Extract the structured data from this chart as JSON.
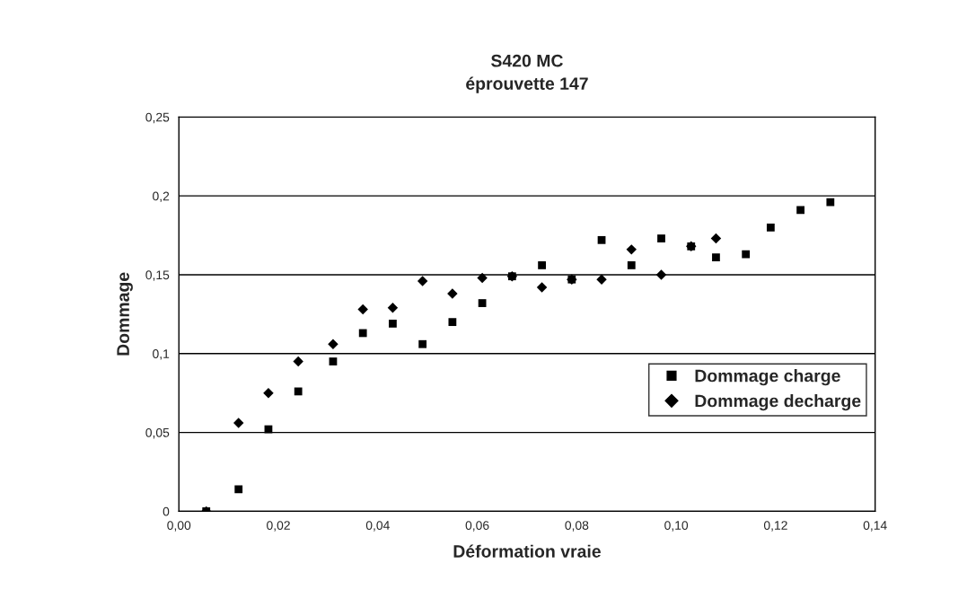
{
  "chart_data": {
    "type": "scatter",
    "title": "S420 MC\néprouvette 147",
    "xlabel": "Déformation vraie",
    "ylabel": "Dommage",
    "series": [
      {
        "name": "Dommage charge",
        "color": "#000000",
        "marker": "square",
        "x": [
          0.0055,
          0.012,
          0.018,
          0.024,
          0.031,
          0.037,
          0.043,
          0.049,
          0.055,
          0.061,
          0.067,
          0.073,
          0.079,
          0.085,
          0.091,
          0.097,
          0.103,
          0.108,
          0.114,
          0.119,
          0.125,
          0.131
        ],
        "values": [
          0,
          0.014,
          0.052,
          0.076,
          0.095,
          0.113,
          0.119,
          0.106,
          0.12,
          0.132,
          0.149,
          0.156,
          0.147,
          0.172,
          0.156,
          0.173,
          0.168,
          0.161,
          0.163,
          0.18,
          0.191,
          0.196
        ]
      },
      {
        "name": "Dommage decharge",
        "color": "#000000",
        "marker": "diamond",
        "x": [
          0.0055,
          0.012,
          0.018,
          0.024,
          0.031,
          0.037,
          0.043,
          0.049,
          0.055,
          0.061,
          0.067,
          0.073,
          0.079,
          0.085,
          0.091,
          0.097,
          0.103,
          0.108
        ],
        "values": [
          0,
          0.056,
          0.075,
          0.095,
          0.106,
          0.128,
          0.129,
          0.146,
          0.138,
          0.148,
          0.149,
          0.142,
          0.147,
          0.147,
          0.166,
          0.15,
          0.168,
          0.173
        ]
      }
    ],
    "xlim": [
      0,
      0.14
    ],
    "ylim": [
      0,
      0.25
    ],
    "xticks": [
      {
        "value": 0,
        "label": "0,00"
      },
      {
        "value": 0.02,
        "label": "0,02"
      },
      {
        "value": 0.04,
        "label": "0,04"
      },
      {
        "value": 0.06,
        "label": "0,06"
      },
      {
        "value": 0.08,
        "label": "0,08"
      },
      {
        "value": 0.1,
        "label": "0,10"
      },
      {
        "value": 0.12,
        "label": "0,12"
      },
      {
        "value": 0.14,
        "label": "0,14"
      }
    ],
    "yticks": [
      0,
      {
        "value": 0.05,
        "label": "0,05"
      },
      {
        "value": 0.1,
        "label": "0,1"
      },
      {
        "value": 0.15,
        "label": "0,15"
      },
      {
        "value": 0.2,
        "label": "0,2"
      },
      {
        "value": 0.25,
        "label": "0,25"
      }
    ],
    "grid": "y",
    "legend": "right"
  }
}
